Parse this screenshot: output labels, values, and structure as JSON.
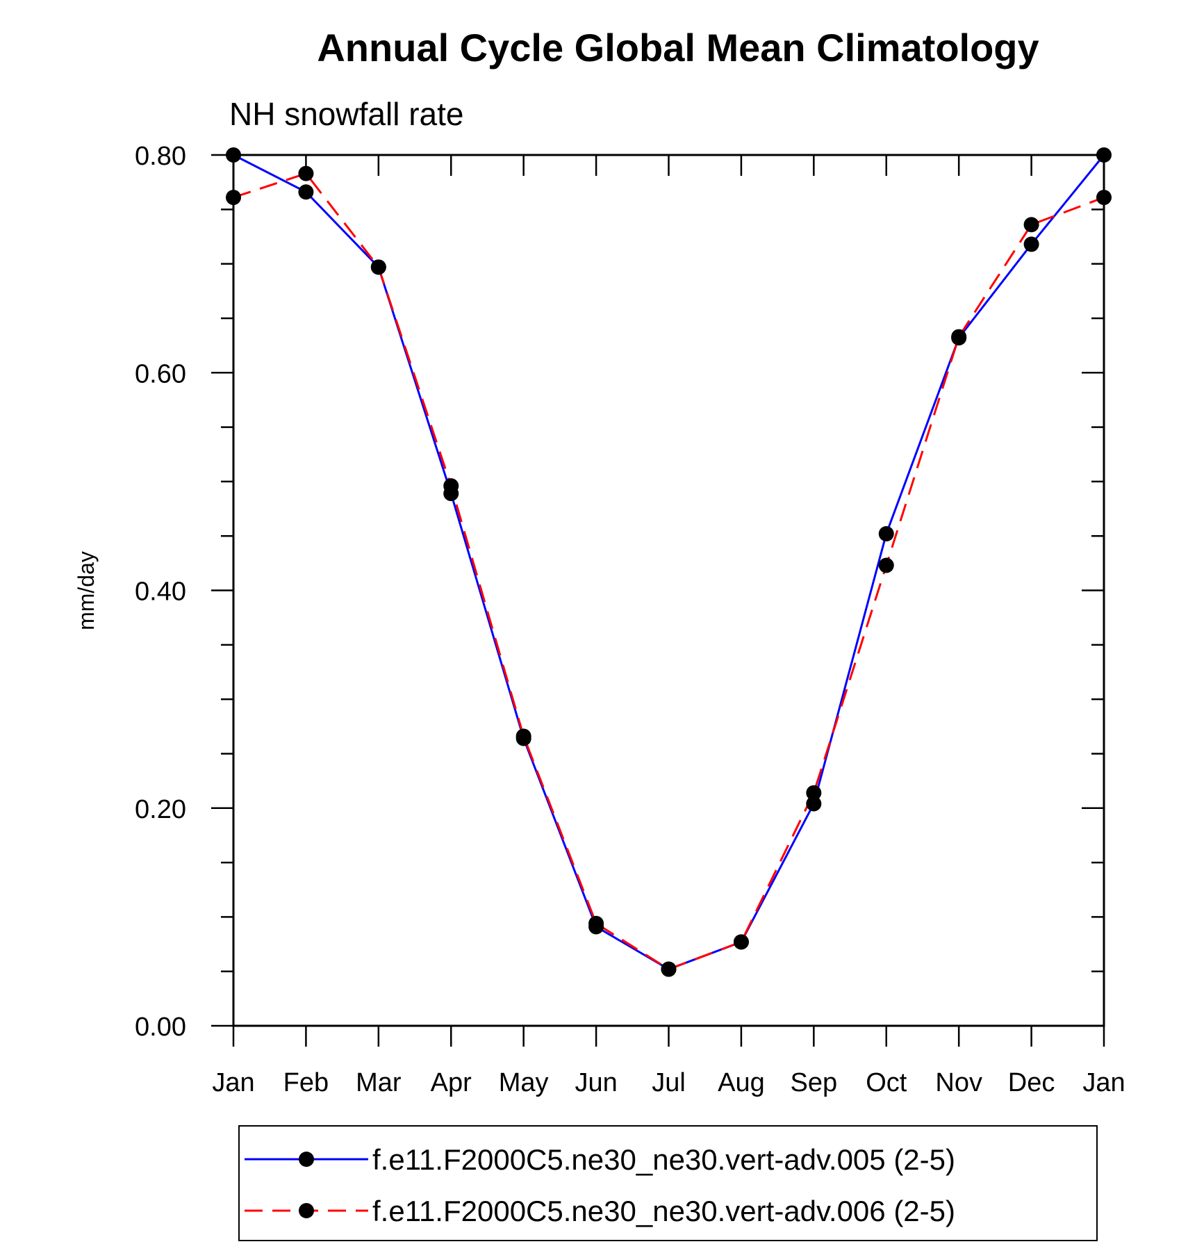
{
  "chart_data": {
    "type": "line",
    "title": "Annual Cycle Global Mean Climatology",
    "subtitle": "NH snowfall rate",
    "xlabel": "",
    "ylabel": "mm/day",
    "categories": [
      "Jan",
      "Feb",
      "Mar",
      "Apr",
      "May",
      "Jun",
      "Jul",
      "Aug",
      "Sep",
      "Oct",
      "Nov",
      "Dec",
      "Jan"
    ],
    "ylim": [
      0,
      0.8
    ],
    "yticks": [
      "0.00",
      "0.20",
      "0.40",
      "0.60",
      "0.80"
    ],
    "series": [
      {
        "name": "f.e11.F2000C5.ne30_ne30.vert-adv.005 (2-5)",
        "color": "#0000ff",
        "dash": "solid",
        "values": [
          0.8,
          0.766,
          0.697,
          0.489,
          0.264,
          0.091,
          0.052,
          0.077,
          0.204,
          0.452,
          0.632,
          0.718,
          0.8
        ]
      },
      {
        "name": "f.e11.F2000C5.ne30_ne30.vert-adv.006 (2-5)",
        "color": "#ff0000",
        "dash": "dashed",
        "values": [
          0.761,
          0.783,
          0.697,
          0.496,
          0.266,
          0.094,
          0.052,
          0.077,
          0.214,
          0.423,
          0.633,
          0.736,
          0.761
        ]
      }
    ],
    "legend_position": "bottom"
  }
}
